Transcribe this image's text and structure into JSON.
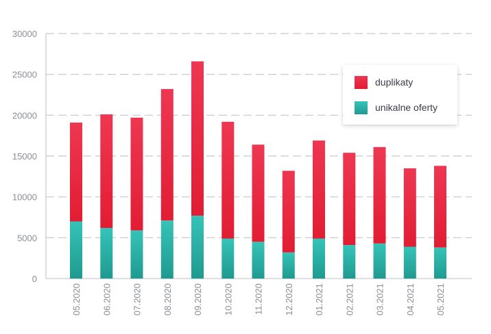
{
  "chart_data": {
    "type": "bar",
    "stacked": true,
    "categories": [
      "05.2020",
      "06.2020",
      "07.2020",
      "08.2020",
      "09.2020",
      "10.2020",
      "11.2020",
      "12.2020",
      "01.2021",
      "02.2021",
      "03.2021",
      "04.2021",
      "05.2021"
    ],
    "series": [
      {
        "name": "unikalne oferty",
        "color": "#2bb5ad",
        "values": [
          7000,
          6200,
          5900,
          7100,
          7700,
          4900,
          4500,
          3200,
          4900,
          4100,
          4300,
          3900,
          3800
        ]
      },
      {
        "name": "duplikaty",
        "color": "#e8253f",
        "values": [
          12100,
          13900,
          13800,
          16100,
          18900,
          14300,
          11900,
          10000,
          12000,
          11300,
          11800,
          9600,
          10000
        ]
      }
    ],
    "ylim": [
      0,
      30000
    ],
    "yticks": [
      "0",
      "5000",
      "10000",
      "15000",
      "20000",
      "25000",
      "30000"
    ],
    "grid": true,
    "legend_position": "top-right",
    "legend": [
      "duplikaty",
      "unikalne oferty"
    ]
  }
}
